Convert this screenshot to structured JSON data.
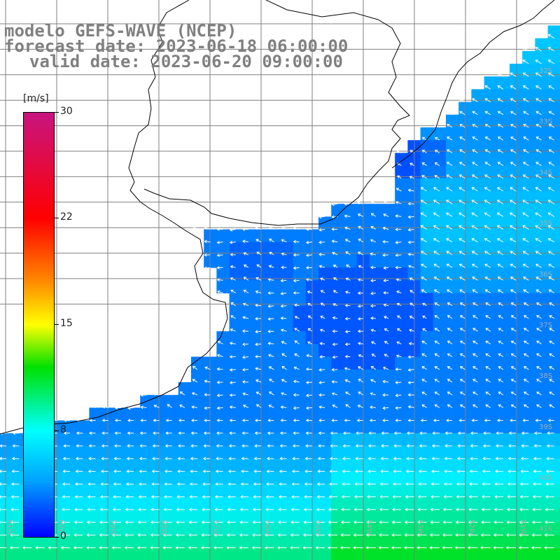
{
  "title": {
    "line1": "modelo GEFS-WAVE (NCEP)",
    "line2": "forecast date: 2023-06-18 06:00:00",
    "line3": "valid date: 2023-06-20 09:00:00"
  },
  "colorbar": {
    "unit": "[m/s]",
    "ticks": [
      "30",
      "22",
      "15",
      "8",
      "0"
    ],
    "colors": [
      "#c8147f",
      "#ff0000",
      "#ff8c00",
      "#ffff00",
      "#00e000",
      "#00ffff",
      "#00a0ff",
      "#0000ff"
    ]
  },
  "map": {
    "lat_labels": [
      "32S",
      "33S",
      "34S",
      "35S",
      "36S",
      "37S",
      "38S",
      "39S",
      "40S",
      "41S"
    ],
    "lon_labels": [
      "61W",
      "60W",
      "59W",
      "58W",
      "57W",
      "56W",
      "55W",
      "54W",
      "53W",
      "52W",
      "51W"
    ],
    "colors": {
      "land": "#ffffff",
      "coast": "#000000",
      "grid": "#7f7f7f",
      "arrow": "#ffffff"
    }
  }
}
